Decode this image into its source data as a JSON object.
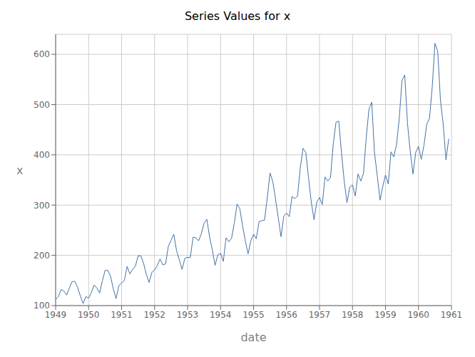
{
  "chart_data": {
    "type": "line",
    "title": "Series Values for x",
    "xlabel": "date",
    "ylabel": "x",
    "color": "#4472a8",
    "grid": true,
    "xlim": [
      1949,
      1961
    ],
    "xticks": [
      1949,
      1950,
      1951,
      1952,
      1953,
      1954,
      1955,
      1956,
      1957,
      1958,
      1959,
      1960,
      1961
    ],
    "ylim": [
      100,
      640
    ],
    "yticks": [
      100,
      200,
      300,
      400,
      500,
      600
    ],
    "x": [
      1949,
      1949.0833333333333,
      1949.1666666666667,
      1949.25,
      1949.3333333333333,
      1949.4166666666667,
      1949.5,
      1949.5833333333333,
      1949.6666666666667,
      1949.75,
      1949.8333333333333,
      1949.9166666666667,
      1950,
      1950.0833333333333,
      1950.1666666666667,
      1950.25,
      1950.3333333333333,
      1950.4166666666667,
      1950.5,
      1950.5833333333333,
      1950.6666666666667,
      1950.75,
      1950.8333333333333,
      1950.9166666666667,
      1951,
      1951.0833333333333,
      1951.1666666666667,
      1951.25,
      1951.3333333333333,
      1951.4166666666667,
      1951.5,
      1951.5833333333333,
      1951.6666666666667,
      1951.75,
      1951.8333333333333,
      1951.9166666666667,
      1952,
      1952.0833333333333,
      1952.1666666666667,
      1952.25,
      1952.3333333333333,
      1952.4166666666667,
      1952.5,
      1952.5833333333333,
      1952.6666666666667,
      1952.75,
      1952.8333333333333,
      1952.9166666666667,
      1953,
      1953.0833333333333,
      1953.1666666666667,
      1953.25,
      1953.3333333333333,
      1953.4166666666667,
      1953.5,
      1953.5833333333333,
      1953.6666666666667,
      1953.75,
      1953.8333333333333,
      1953.9166666666667,
      1954,
      1954.0833333333333,
      1954.1666666666667,
      1954.25,
      1954.3333333333333,
      1954.4166666666667,
      1954.5,
      1954.5833333333333,
      1954.6666666666667,
      1954.75,
      1954.8333333333333,
      1954.9166666666667,
      1955,
      1955.0833333333333,
      1955.1666666666667,
      1955.25,
      1955.3333333333333,
      1955.4166666666667,
      1955.5,
      1955.5833333333333,
      1955.6666666666667,
      1955.75,
      1955.8333333333333,
      1955.9166666666667,
      1956,
      1956.0833333333333,
      1956.1666666666667,
      1956.25,
      1956.3333333333333,
      1956.4166666666667,
      1956.5,
      1956.5833333333333,
      1956.6666666666667,
      1956.75,
      1956.8333333333333,
      1956.9166666666667,
      1957,
      1957.0833333333333,
      1957.1666666666667,
      1957.25,
      1957.3333333333333,
      1957.4166666666667,
      1957.5,
      1957.5833333333333,
      1957.6666666666667,
      1957.75,
      1957.8333333333333,
      1957.9166666666667,
      1958,
      1958.0833333333333,
      1958.1666666666667,
      1958.25,
      1958.3333333333333,
      1958.4166666666667,
      1958.5,
      1958.5833333333333,
      1958.6666666666667,
      1958.75,
      1958.8333333333333,
      1958.9166666666667,
      1959,
      1959.0833333333333,
      1959.1666666666667,
      1959.25,
      1959.3333333333333,
      1959.4166666666667,
      1959.5,
      1959.5833333333333,
      1959.6666666666667,
      1959.75,
      1959.8333333333333,
      1959.9166666666667,
      1960,
      1960.0833333333333,
      1960.1666666666667,
      1960.25,
      1960.3333333333333,
      1960.4166666666667,
      1960.5,
      1960.5833333333333,
      1960.6666666666667,
      1960.75,
      1960.8333333333333,
      1960.9166666666667
    ],
    "values": [
      112,
      118,
      132,
      129,
      121,
      135,
      148,
      148,
      136,
      119,
      104,
      118,
      115,
      126,
      141,
      135,
      125,
      149,
      170,
      170,
      158,
      133,
      114,
      140,
      145,
      150,
      178,
      163,
      172,
      178,
      199,
      199,
      184,
      162,
      146,
      166,
      171,
      180,
      193,
      181,
      183,
      218,
      230,
      242,
      209,
      191,
      172,
      194,
      196,
      196,
      236,
      235,
      229,
      243,
      264,
      272,
      237,
      211,
      180,
      201,
      204,
      188,
      235,
      227,
      234,
      264,
      302,
      293,
      259,
      229,
      203,
      229,
      242,
      233,
      267,
      269,
      270,
      315,
      364,
      347,
      312,
      274,
      237,
      278,
      284,
      277,
      317,
      313,
      318,
      374,
      413,
      405,
      355,
      306,
      271,
      306,
      315,
      301,
      356,
      348,
      355,
      422,
      465,
      467,
      404,
      347,
      305,
      336,
      340,
      318,
      362,
      348,
      363,
      435,
      491,
      505,
      404,
      359,
      310,
      337,
      360,
      342,
      406,
      396,
      420,
      472,
      548,
      559,
      463,
      407,
      362,
      405,
      417,
      391,
      419,
      461,
      472,
      535,
      622,
      606,
      508,
      461,
      390,
      432
    ]
  }
}
